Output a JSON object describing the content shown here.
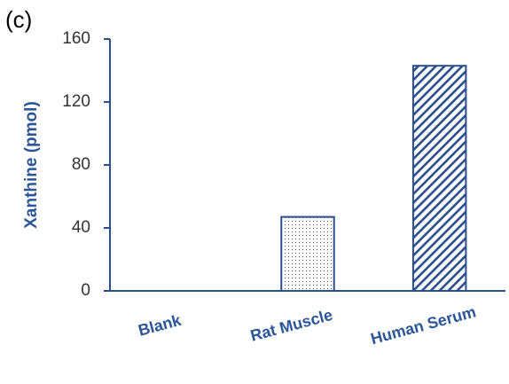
{
  "chart_data": {
    "type": "bar",
    "panel_label": "(c)",
    "y_label": "Xanthine (pmol)",
    "categories": [
      "Blank",
      "Rat Muscle",
      "Human Serum"
    ],
    "values": [
      0,
      47,
      143
    ],
    "patterns": [
      "dots",
      "dots",
      "hatch"
    ],
    "color": "#2b4f8e",
    "ylim": [
      0,
      160
    ],
    "yticks": [
      0,
      40,
      80,
      120,
      160
    ],
    "grid": false
  }
}
